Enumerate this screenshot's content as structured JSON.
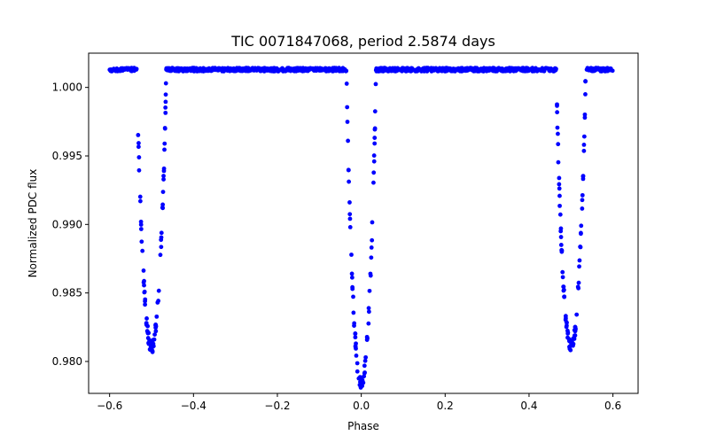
{
  "chart_data": {
    "type": "scatter",
    "title": "TIC 0071847068, period 2.5874 days",
    "xlabel": "Phase",
    "ylabel": "Normalized PDC flux",
    "xlim": [
      -0.65,
      0.66
    ],
    "ylim": [
      0.97767,
      1.0025
    ],
    "xticks": [
      -0.6,
      -0.4,
      -0.2,
      0.0,
      0.2,
      0.4,
      0.6
    ],
    "xtick_labels": [
      "−0.6",
      "−0.4",
      "−0.2",
      "0.0",
      "0.2",
      "0.4",
      "0.6"
    ],
    "yticks": [
      0.98,
      0.985,
      0.99,
      0.995,
      1.0
    ],
    "ytick_labels": [
      "0.980",
      "0.985",
      "0.990",
      "0.995",
      "1.000"
    ],
    "grid": false,
    "legend": "none",
    "colors": {
      "points": "#0000ff",
      "axes": "#000000"
    },
    "series": [
      {
        "x_range": [
          -0.6,
          0.6
        ],
        "baseline": 1.0013,
        "eclipses": [
          {
            "center": -0.5,
            "min": 0.981,
            "half_width": 0.035
          },
          {
            "center": 0.0,
            "min": 0.9783,
            "half_width": 0.035
          },
          {
            "center": 0.5,
            "min": 0.981,
            "half_width": 0.035
          }
        ]
      }
    ]
  }
}
